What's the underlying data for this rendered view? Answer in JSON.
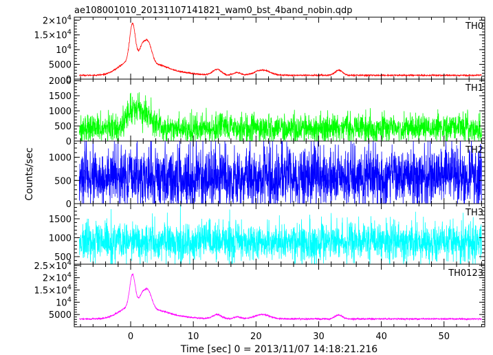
{
  "chart_data": {
    "type": "line",
    "title": "ae108001010_20131107141821_wam0_bst_4band_nobin.qdp",
    "xlabel": "Time [sec] 0 = 2013/11/07 14:18:21.216",
    "ylabel": "Counts/sec",
    "xlim": [
      -9,
      56.5
    ],
    "x_ticks": [
      0,
      10,
      20,
      30,
      40,
      50
    ],
    "x_tick_labels": [
      "0",
      "10",
      "20",
      "30",
      "40",
      "50"
    ],
    "grid": false,
    "panels": [
      {
        "name": "TH0",
        "color": "#ff0000",
        "ylim": [
          0,
          21000
        ],
        "y_ticks": [
          {
            "value": 0,
            "label": "0",
            "base": "0",
            "exp": ""
          },
          {
            "value": 5000,
            "label": "5000",
            "base": "5000",
            "exp": ""
          },
          {
            "value": 10000,
            "label": "10⁴",
            "base": "10",
            "exp": "4"
          },
          {
            "value": 15000,
            "label": "1.5×10⁴",
            "base": "1.5×10",
            "exp": "4"
          },
          {
            "value": 20000,
            "label": "2×10⁴",
            "base": "2×10",
            "exp": "4"
          }
        ],
        "baseline": 1300,
        "noise": 120,
        "bumps": [
          {
            "t": -1.0,
            "amp": 1500,
            "w": 1.5
          },
          {
            "t": 0.3,
            "amp": 13000,
            "w": 0.45
          },
          {
            "t": 0.6,
            "amp": 3500,
            "w": 2.0
          },
          {
            "t": 1.8,
            "amp": 5000,
            "w": 0.5
          },
          {
            "t": 2.8,
            "amp": 7500,
            "w": 0.6
          },
          {
            "t": 4.5,
            "amp": 2200,
            "w": 1.5
          },
          {
            "t": 7.0,
            "amp": 1200,
            "w": 2.5
          },
          {
            "t": 13.8,
            "amp": 2000,
            "w": 0.7
          },
          {
            "t": 17.0,
            "amp": 900,
            "w": 0.6
          },
          {
            "t": 21.0,
            "amp": 1800,
            "w": 1.2
          },
          {
            "t": 33.2,
            "amp": 1700,
            "w": 0.6
          }
        ]
      },
      {
        "name": "TH1",
        "color": "#00ff00",
        "ylim": [
          0,
          2050
        ],
        "y_ticks": [
          {
            "value": 0,
            "label": "0",
            "base": "0",
            "exp": ""
          },
          {
            "value": 500,
            "label": "500",
            "base": "500",
            "exp": ""
          },
          {
            "value": 1000,
            "label": "1000",
            "base": "1000",
            "exp": ""
          },
          {
            "value": 1500,
            "label": "1500",
            "base": "1500",
            "exp": ""
          },
          {
            "value": 2000,
            "label": "2000",
            "base": "2000",
            "exp": ""
          }
        ],
        "baseline": 420,
        "noise": 230,
        "bumps": [
          {
            "t": 0.6,
            "amp": 650,
            "w": 1.2
          },
          {
            "t": 2.8,
            "amp": 350,
            "w": 1.0
          }
        ]
      },
      {
        "name": "TH2",
        "color": "#0000ff",
        "ylim": [
          0,
          1350
        ],
        "y_ticks": [
          {
            "value": 0,
            "label": "0",
            "base": "0",
            "exp": ""
          },
          {
            "value": 500,
            "label": "500",
            "base": "500",
            "exp": ""
          },
          {
            "value": 1000,
            "label": "1000",
            "base": "1000",
            "exp": ""
          }
        ],
        "baseline": 560,
        "noise": 330,
        "bumps": []
      },
      {
        "name": "TH3",
        "color": "#00ffff",
        "ylim": [
          300,
          1900
        ],
        "y_ticks": [
          {
            "value": 500,
            "label": "500",
            "base": "500",
            "exp": ""
          },
          {
            "value": 1000,
            "label": "1000",
            "base": "1000",
            "exp": ""
          },
          {
            "value": 1500,
            "label": "1500",
            "base": "1500",
            "exp": ""
          }
        ],
        "baseline": 880,
        "noise": 260,
        "bumps": []
      },
      {
        "name": "TH0123",
        "color": "#ff00ff",
        "ylim": [
          0,
          25500
        ],
        "y_ticks": [
          {
            "value": 5000,
            "label": "5000",
            "base": "5000",
            "exp": ""
          },
          {
            "value": 10000,
            "label": "10⁴",
            "base": "10",
            "exp": "4"
          },
          {
            "value": 15000,
            "label": "1.5×10⁴",
            "base": "1.5×10",
            "exp": "4"
          },
          {
            "value": 20000,
            "label": "2×10⁴",
            "base": "2×10",
            "exp": "4"
          },
          {
            "value": 25000,
            "label": "2.5×10⁴",
            "base": "2.5×10",
            "exp": "4"
          }
        ],
        "baseline": 3200,
        "noise": 150,
        "bumps": [
          {
            "t": -1.0,
            "amp": 1500,
            "w": 1.5
          },
          {
            "t": 0.3,
            "amp": 13500,
            "w": 0.45
          },
          {
            "t": 0.6,
            "amp": 3500,
            "w": 2.0
          },
          {
            "t": 1.8,
            "amp": 5000,
            "w": 0.5
          },
          {
            "t": 2.8,
            "amp": 7800,
            "w": 0.6
          },
          {
            "t": 4.5,
            "amp": 2200,
            "w": 1.5
          },
          {
            "t": 7.0,
            "amp": 1200,
            "w": 2.5
          },
          {
            "t": 13.8,
            "amp": 1800,
            "w": 0.7
          },
          {
            "t": 17.0,
            "amp": 800,
            "w": 0.6
          },
          {
            "t": 21.0,
            "amp": 1800,
            "w": 1.2
          },
          {
            "t": 33.2,
            "amp": 1600,
            "w": 0.6
          }
        ]
      }
    ]
  }
}
